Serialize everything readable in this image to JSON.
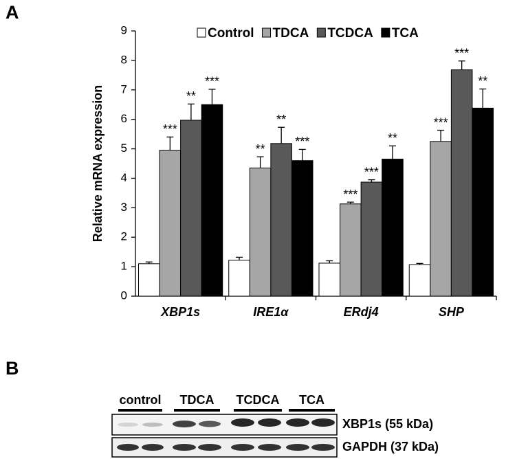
{
  "panel_a_label": "A",
  "chart_data": {
    "type": "bar",
    "ylabel": "Relative mRNA expression",
    "categories": [
      "XBP1s",
      "IRE1α",
      "ERdj4",
      "SHP"
    ],
    "ylim": [
      0,
      9
    ],
    "yticks": [
      0,
      1,
      2,
      3,
      4,
      5,
      6,
      7,
      8,
      9
    ],
    "series": [
      {
        "name": "Control",
        "color": "#ffffff",
        "values": [
          1.1,
          1.22,
          1.12,
          1.07
        ],
        "errors": [
          0.06,
          0.1,
          0.08,
          0.04
        ]
      },
      {
        "name": "TDCA",
        "color": "#a6a6a6",
        "values": [
          4.95,
          4.35,
          3.13,
          5.25
        ],
        "errors": [
          0.45,
          0.38,
          0.06,
          0.38
        ],
        "significance": [
          "***",
          "**",
          "***",
          "***"
        ]
      },
      {
        "name": "TCDCA",
        "color": "#595959",
        "values": [
          5.97,
          5.18,
          3.87,
          7.68
        ],
        "errors": [
          0.55,
          0.55,
          0.08,
          0.3
        ],
        "significance": [
          "**",
          "**",
          "***",
          "***"
        ]
      },
      {
        "name": "TCA",
        "color": "#000000",
        "values": [
          6.5,
          4.6,
          4.65,
          6.38
        ],
        "errors": [
          0.52,
          0.38,
          0.45,
          0.65
        ],
        "significance": [
          "***",
          "***",
          "**",
          "**"
        ]
      }
    ]
  },
  "panel_b_label": "B",
  "blot": {
    "lane_groups": [
      "control",
      "TDCA",
      "TCDCA",
      "TCA"
    ],
    "bands": [
      "XBP1s (55 kDa)",
      "GAPDH (37 kDa)"
    ]
  }
}
